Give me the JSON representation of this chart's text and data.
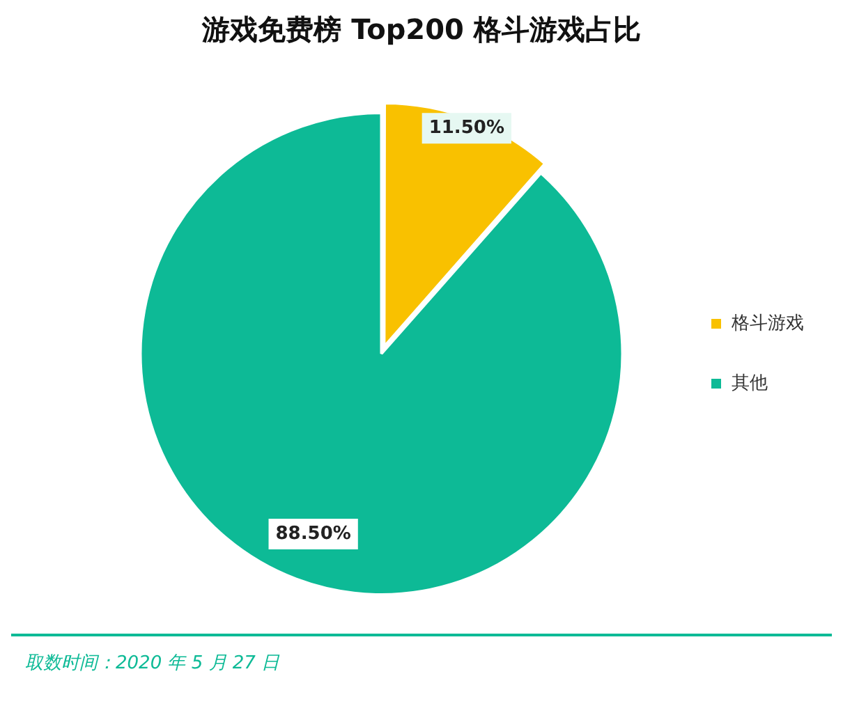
{
  "chart_data": {
    "type": "pie",
    "title": "游戏免费榜 Top200 格斗游戏占比",
    "categories": [
      "格斗游戏",
      "其他"
    ],
    "values": [
      11.5,
      88.5
    ],
    "colors": [
      "#f9c100",
      "#0dba96"
    ],
    "value_labels": [
      "11.50%",
      "88.50%"
    ],
    "legend": "right",
    "annotations": [
      "取数时间：2020 年 5 月 27 日"
    ]
  }
}
